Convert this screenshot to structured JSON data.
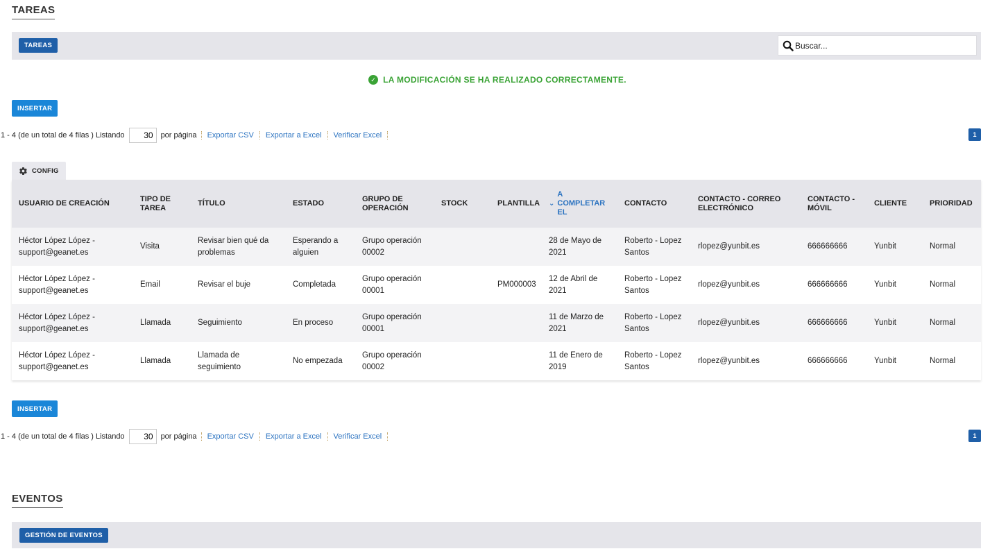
{
  "tareas_section": {
    "title": "TAREAS",
    "tab_label": "TAREAS",
    "search_placeholder": "Buscar..."
  },
  "success_message": "LA MODIFICACIÓN SE HA REALIZADO CORRECTAMENTE.",
  "insert_label": "INSERTAR",
  "pager": {
    "summary": "1 - 4 (de un total de 4 filas ) Listando",
    "per_page_value": "30",
    "per_page_suffix": "por página",
    "export_csv": "Exportar CSV",
    "export_excel": "Exportar a Excel",
    "verify_excel": "Verificar Excel",
    "current_page": "1"
  },
  "config_label": "CONFIG",
  "table": {
    "columns": [
      "USUARIO DE CREACIÓN",
      "TIPO DE TAREA",
      "TÍTULO",
      "ESTADO",
      "GRUPO DE OPERACIÓN",
      "STOCK",
      "PLANTILLA",
      "A COMPLETAR EL",
      "CONTACTO",
      "CONTACTO - CORREO ELECTRÓNICO",
      "CONTACTO - MÓVIL",
      "CLIENTE",
      "PRIORIDAD"
    ],
    "rows": [
      {
        "usuario": "Héctor López López - support@geanet.es",
        "tipo": "Visita",
        "titulo": "Revisar bien qué da problemas",
        "estado": "Esperando a alguien",
        "grupo": "Grupo operación 00002",
        "stock": "",
        "plantilla": "",
        "fecha": "28 de Mayo de 2021",
        "contacto": "Roberto - Lopez Santos",
        "correo": "rlopez@yunbit.es",
        "movil": "666666666",
        "cliente": "Yunbit",
        "prioridad": "Normal"
      },
      {
        "usuario": "Héctor López López - support@geanet.es",
        "tipo": "Email",
        "titulo": "Revisar el buje",
        "estado": "Completada",
        "grupo": "Grupo operación 00001",
        "stock": "",
        "plantilla": "PM000003",
        "fecha": "12 de Abril de 2021",
        "contacto": "Roberto - Lopez Santos",
        "correo": "rlopez@yunbit.es",
        "movil": "666666666",
        "cliente": "Yunbit",
        "prioridad": "Normal"
      },
      {
        "usuario": "Héctor López López - support@geanet.es",
        "tipo": "Llamada",
        "titulo": "Seguimiento",
        "estado": "En proceso",
        "grupo": "Grupo operación 00001",
        "stock": "",
        "plantilla": "",
        "fecha": "11 de Marzo de 2021",
        "contacto": "Roberto - Lopez Santos",
        "correo": "rlopez@yunbit.es",
        "movil": "666666666",
        "cliente": "Yunbit",
        "prioridad": "Normal"
      },
      {
        "usuario": "Héctor López López - support@geanet.es",
        "tipo": "Llamada",
        "titulo": "Llamada de seguimiento",
        "estado": "No empezada",
        "grupo": "Grupo operación 00002",
        "stock": "",
        "plantilla": "",
        "fecha": "11 de Enero de 2019",
        "contacto": "Roberto - Lopez Santos",
        "correo": "rlopez@yunbit.es",
        "movil": "666666666",
        "cliente": "Yunbit",
        "prioridad": "Normal"
      }
    ]
  },
  "eventos_section": {
    "title": "EVENTOS",
    "tab_label": "GESTIÓN DE EVENTOS"
  },
  "colors": {
    "primary_dark": "#1f5fa8",
    "primary_button": "#1a86d8",
    "success": "#3aa335",
    "link": "#2a72c0",
    "bar_background": "#e5e5ea"
  },
  "icons": {
    "search": "search-icon",
    "success": "check-circle-icon",
    "config": "gear-icon",
    "sort": "chevron-down-icon"
  }
}
